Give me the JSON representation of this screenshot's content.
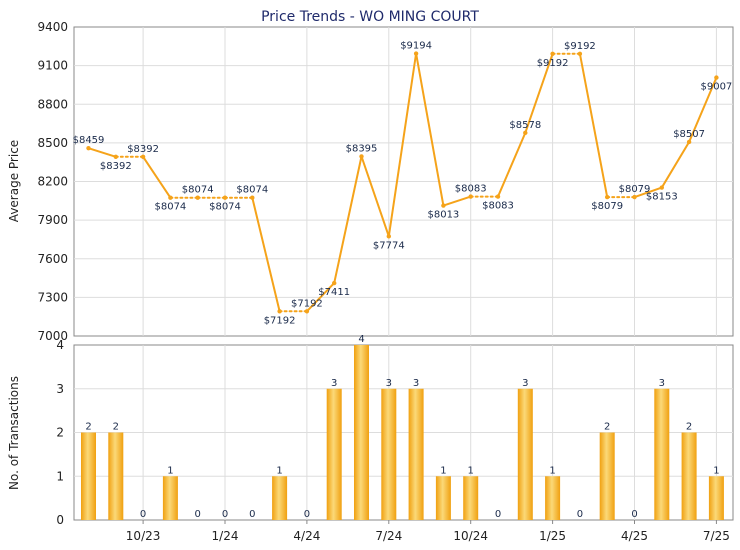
{
  "chart_data": [
    {
      "type": "line",
      "title": "Price Trends - WO MING COURT",
      "ylabel": "Average Price",
      "ylim": [
        7000,
        9400
      ],
      "yticks": [
        7000,
        7300,
        7600,
        7900,
        8200,
        8500,
        8800,
        9100,
        9400
      ],
      "color": "#f5a31a",
      "points": [
        {
          "idx": 0,
          "value": 8459,
          "label": "$8459",
          "to_next": "solid"
        },
        {
          "idx": 1,
          "value": 8392,
          "label": "$8392",
          "to_next": "dotted"
        },
        {
          "idx": 2,
          "value": 8392,
          "label": "$8392",
          "to_next": "solid"
        },
        {
          "idx": 3,
          "value": 8074,
          "label": "$8074",
          "to_next": "dotted"
        },
        {
          "idx": 4,
          "value": 8074,
          "label": "$8074",
          "to_next": "dotted"
        },
        {
          "idx": 5,
          "value": 8074,
          "label": "$8074",
          "to_next": "dotted"
        },
        {
          "idx": 6,
          "value": 8074,
          "label": "$8074",
          "to_next": "solid"
        },
        {
          "idx": 7,
          "value": 7192,
          "label": "$7192",
          "to_next": "dotted"
        },
        {
          "idx": 8,
          "value": 7192,
          "label": "$7192",
          "to_next": "solid"
        },
        {
          "idx": 9,
          "value": 7411,
          "label": "$7411",
          "to_next": "solid"
        },
        {
          "idx": 10,
          "value": 8395,
          "label": "$8395",
          "to_next": "solid"
        },
        {
          "idx": 11,
          "value": 7774,
          "label": "$7774",
          "to_next": "solid"
        },
        {
          "idx": 12,
          "value": 9194,
          "label": "$9194",
          "to_next": "solid"
        },
        {
          "idx": 13,
          "value": 8013,
          "label": "$8013",
          "to_next": "solid"
        },
        {
          "idx": 14,
          "value": 8083,
          "label": "$8083",
          "to_next": "dotted"
        },
        {
          "idx": 15,
          "value": 8083,
          "label": "$8083",
          "to_next": "solid"
        },
        {
          "idx": 16,
          "value": 8578,
          "label": "$8578",
          "to_next": "solid"
        },
        {
          "idx": 17,
          "value": 9192,
          "label": "$9192",
          "to_next": "dotted"
        },
        {
          "idx": 18,
          "value": 9192,
          "label": "$9192",
          "to_next": "solid"
        },
        {
          "idx": 19,
          "value": 8079,
          "label": "$8079",
          "to_next": "dotted"
        },
        {
          "idx": 20,
          "value": 8079,
          "label": "$8079",
          "to_next": "solid"
        },
        {
          "idx": 21,
          "value": 8153,
          "label": "$8153",
          "to_next": "solid"
        },
        {
          "idx": 22,
          "value": 8507,
          "label": "$8507",
          "to_next": "solid"
        },
        {
          "idx": 23,
          "value": 9007,
          "label": "$9007",
          "to_next": "none"
        }
      ]
    },
    {
      "type": "bar",
      "ylabel": "No. of Transactions",
      "ylim": [
        0,
        4
      ],
      "yticks": [
        0,
        1,
        2,
        3,
        4
      ],
      "color": "#f5a31a",
      "values": [
        2,
        2,
        0,
        1,
        0,
        0,
        0,
        1,
        0,
        3,
        4,
        3,
        3,
        1,
        1,
        0,
        3,
        1,
        0,
        2,
        0,
        3,
        2,
        1
      ],
      "xticks": [
        {
          "idx": 2,
          "label": "10/23"
        },
        {
          "idx": 5,
          "label": "1/24"
        },
        {
          "idx": 8,
          "label": "4/24"
        },
        {
          "idx": 11,
          "label": "7/24"
        },
        {
          "idx": 14,
          "label": "10/24"
        },
        {
          "idx": 17,
          "label": "1/25"
        },
        {
          "idx": 20,
          "label": "4/25"
        },
        {
          "idx": 23,
          "label": "7/25"
        }
      ]
    }
  ]
}
